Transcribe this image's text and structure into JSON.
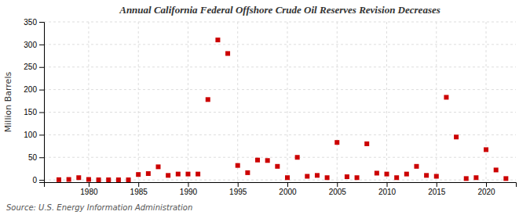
{
  "chart_data": {
    "type": "scatter",
    "title": "Annual California Federal Offshore Crude Oil Reserves Revision Decreases",
    "ylabel": "Million Barrels",
    "source": "Source: U.S. Energy Information Administration",
    "x": [
      1977,
      1978,
      1979,
      1980,
      1981,
      1982,
      1983,
      1984,
      1985,
      1986,
      1987,
      1988,
      1989,
      1990,
      1991,
      1992,
      1993,
      1994,
      1995,
      1996,
      1997,
      1998,
      1999,
      2000,
      2001,
      2002,
      2003,
      2004,
      2005,
      2006,
      2007,
      2008,
      2009,
      2010,
      2011,
      2012,
      2013,
      2014,
      2015,
      2016,
      2017,
      2018,
      2019,
      2020,
      2021,
      2022
    ],
    "values": [
      0.5,
      1.0,
      5.0,
      1.0,
      0.2,
      0.2,
      0.2,
      0.2,
      12.0,
      14.0,
      29.0,
      10.0,
      13.0,
      13.0,
      13.0,
      178.0,
      310.0,
      280.0,
      32.0,
      16.0,
      44.0,
      43.0,
      30.0,
      5.0,
      50.0,
      8.0,
      10.0,
      5.0,
      83.0,
      7.0,
      5.0,
      80.0,
      15.0,
      13.0,
      5.0,
      13.0,
      30.0,
      10.0,
      8.0,
      183.0,
      95.0,
      3.0,
      5.0,
      67.0,
      22.0,
      3.0
    ],
    "color": "#cc0000",
    "marker": "square",
    "xlim": [
      1975.5,
      2023
    ],
    "ylim": [
      -5,
      350
    ],
    "xticks": [
      1980,
      1985,
      1990,
      1995,
      2000,
      2005,
      2010,
      2015,
      2020
    ],
    "yticks": [
      0,
      50,
      100,
      150,
      200,
      250,
      300,
      350
    ],
    "grid": true
  }
}
